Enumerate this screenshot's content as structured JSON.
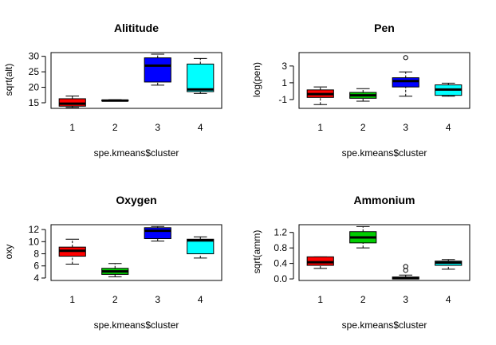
{
  "chart_data": [
    {
      "type": "boxplot",
      "title": "Alititude",
      "xlabel": "spe.kmeans$cluster",
      "ylabel": "sqrt(alt)",
      "categories": [
        "1",
        "2",
        "3",
        "4"
      ],
      "yticks": [
        "15",
        "20",
        "25",
        "30"
      ],
      "ylim": [
        13.2,
        31.2
      ],
      "boxes": [
        {
          "color": "#ff0000",
          "whisker_low": 13.5,
          "q1": 13.9,
          "median": 14.7,
          "q3": 16.3,
          "whisker_high": 17.2,
          "outliers": []
        },
        {
          "color": "#00cd00",
          "whisker_low": 15.5,
          "q1": 15.6,
          "median": 15.7,
          "q3": 15.9,
          "whisker_high": 16.0,
          "outliers": []
        },
        {
          "color": "#0000ff",
          "whisker_low": 20.7,
          "q1": 21.7,
          "median": 27.0,
          "q3": 29.5,
          "whisker_high": 30.7,
          "outliers": []
        },
        {
          "color": "#00ffff",
          "whisker_low": 18.0,
          "q1": 18.6,
          "median": 19.3,
          "q3": 27.5,
          "whisker_high": 29.3,
          "outliers": []
        }
      ]
    },
    {
      "type": "boxplot",
      "title": "Pen",
      "xlabel": "spe.kmeans$cluster",
      "ylabel": "log(pen)",
      "categories": [
        "1",
        "2",
        "3",
        "4"
      ],
      "yticks": [
        "-1",
        "1",
        "3"
      ],
      "ylim": [
        -2.05,
        4.6
      ],
      "boxes": [
        {
          "color": "#ff0000",
          "whisker_low": -1.6,
          "q1": -0.75,
          "median": -0.35,
          "q3": 0.15,
          "whisker_high": 0.5,
          "outliers": []
        },
        {
          "color": "#00cd00",
          "whisker_low": -1.2,
          "q1": -0.85,
          "median": -0.5,
          "q3": -0.15,
          "whisker_high": 0.3,
          "outliers": []
        },
        {
          "color": "#0000ff",
          "whisker_low": -0.6,
          "q1": 0.5,
          "median": 1.2,
          "q3": 1.6,
          "whisker_high": 2.3,
          "outliers": [
            4.0
          ]
        },
        {
          "color": "#00ffff",
          "whisker_low": -0.6,
          "q1": -0.5,
          "median": 0.2,
          "q3": 0.75,
          "whisker_high": 0.95,
          "outliers": []
        }
      ]
    },
    {
      "type": "boxplot",
      "title": "Oxygen",
      "xlabel": "spe.kmeans$cluster",
      "ylabel": "oxy",
      "categories": [
        "1",
        "2",
        "3",
        "4"
      ],
      "yticks": [
        "4",
        "6",
        "8",
        "10",
        "12"
      ],
      "ylim": [
        3.6,
        12.8
      ],
      "boxes": [
        {
          "color": "#ff0000",
          "whisker_low": 6.3,
          "q1": 7.6,
          "median": 8.5,
          "q3": 9.1,
          "whisker_high": 10.4,
          "outliers": []
        },
        {
          "color": "#00cd00",
          "whisker_low": 4.2,
          "q1": 4.6,
          "median": 5.1,
          "q3": 5.6,
          "whisker_high": 6.4,
          "outliers": []
        },
        {
          "color": "#0000ff",
          "whisker_low": 10.1,
          "q1": 10.5,
          "median": 11.8,
          "q3": 12.3,
          "whisker_high": 12.5,
          "outliers": []
        },
        {
          "color": "#00ffff",
          "whisker_low": 7.3,
          "q1": 8.0,
          "median": 10.2,
          "q3": 10.4,
          "whisker_high": 10.8,
          "outliers": []
        }
      ]
    },
    {
      "type": "boxplot",
      "title": "Ammonium",
      "xlabel": "spe.kmeans$cluster",
      "ylabel": "sqrt(amm)",
      "categories": [
        "1",
        "2",
        "3",
        "4"
      ],
      "yticks": [
        "0.0",
        "0.4",
        "0.8",
        "1.2"
      ],
      "ylim": [
        -0.04,
        1.4
      ],
      "boxes": [
        {
          "color": "#ff0000",
          "whisker_low": 0.27,
          "q1": 0.35,
          "median": 0.43,
          "q3": 0.57,
          "whisker_high": 0.57,
          "outliers": []
        },
        {
          "color": "#00cd00",
          "whisker_low": 0.8,
          "q1": 0.93,
          "median": 1.07,
          "q3": 1.22,
          "whisker_high": 1.35,
          "outliers": []
        },
        {
          "color": "#0000ff",
          "whisker_low": 0.0,
          "q1": 0.0,
          "median": 0.02,
          "q3": 0.05,
          "whisker_high": 0.1,
          "outliers": [
            0.22,
            0.32
          ]
        },
        {
          "color": "#00ffff",
          "whisker_low": 0.25,
          "q1": 0.35,
          "median": 0.42,
          "q3": 0.46,
          "whisker_high": 0.5,
          "outliers": []
        }
      ]
    }
  ]
}
